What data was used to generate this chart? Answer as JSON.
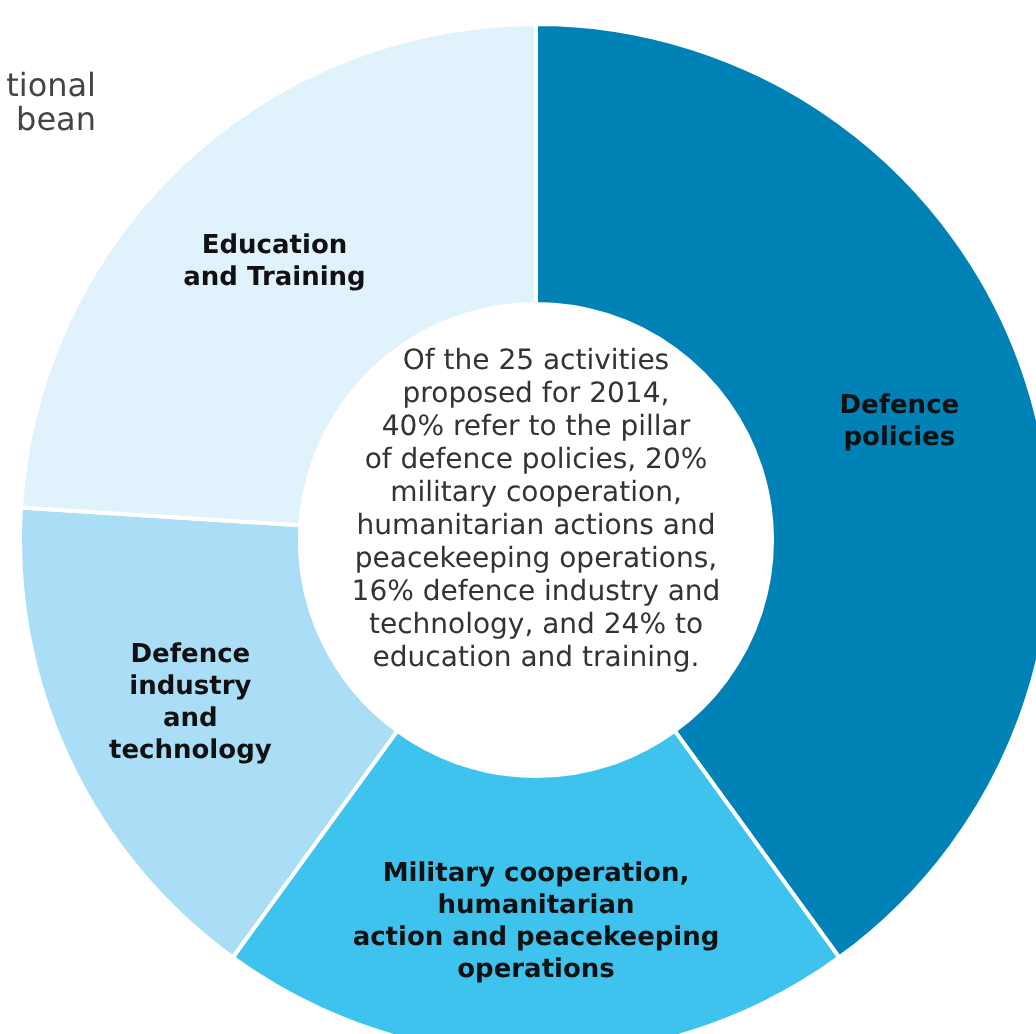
{
  "chart_data": {
    "type": "donut",
    "categories": [
      "Defence\npolicies",
      "Military cooperation,\nhumanitarian\naction and peacekeeping\noperations",
      "Defence\nindustry\nand\ntechnology",
      "Education\nand Training"
    ],
    "values": [
      40,
      20,
      16,
      24
    ],
    "colors": [
      "#0082b6",
      "#3ec3ee",
      "#a9def6",
      "#e0f2fc"
    ],
    "annotations": [
      "Of the 25 activities\nproposed for 2014,\n40% refer to the pillar\nof defence policies, 20%\nmilitary cooperation,\nhumanitarian actions and\npeacekeeping operations,\n16% defence industry and\ntechnology, and 24% to\neducation and training.",
      "tional\nbean"
    ]
  }
}
